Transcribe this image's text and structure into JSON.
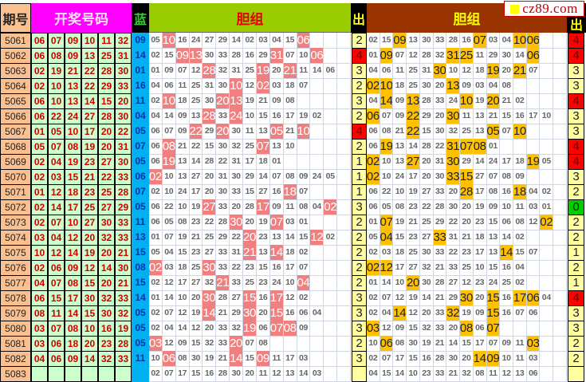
{
  "header": {
    "period": "期号",
    "draw": "开奖号码",
    "blue": "蓝",
    "group1": "胆组",
    "out1": "出",
    "group2": "胆组",
    "out2": "出"
  },
  "logo": {
    "text": "cz89.com"
  },
  "colors": {
    "period_bg": "#fac090",
    "draw_header_bg": "#ff00ff",
    "group1_header_bg": "#99cc00",
    "group2_header_bg": "#993300",
    "hit1": "#f08080",
    "hit2": "#ffc000",
    "blue_bg": "#00b0f0"
  },
  "rows": [
    {
      "period": "5061",
      "draw": [
        "06",
        "07",
        "09",
        "10",
        "11",
        "32"
      ],
      "blue": "09",
      "g1": [
        "05",
        "10",
        "16",
        "24",
        "27",
        "29",
        "14",
        "02",
        "03",
        "04",
        "15",
        "06"
      ],
      "c1": "2",
      "g2": [
        "02",
        "15",
        "09",
        "13",
        "30",
        "33",
        "28",
        "16",
        "07",
        "03",
        "04",
        "10",
        "06"
      ],
      "c2": "4"
    },
    {
      "period": "5062",
      "draw": [
        "06",
        "08",
        "09",
        "13",
        "25",
        "31"
      ],
      "blue": "14",
      "g1": [
        "02",
        "15",
        "09",
        "13",
        "30",
        "33",
        "28",
        "16",
        "29",
        "31",
        "07",
        "10",
        "06"
      ],
      "c1": "4",
      "g2": [
        "01",
        "09",
        "07",
        "12",
        "28",
        "32",
        "31",
        "25",
        "11",
        "29",
        "30",
        "14",
        "06"
      ],
      "c2": "4"
    },
    {
      "period": "5063",
      "draw": [
        "02",
        "19",
        "21",
        "22",
        "28",
        "30"
      ],
      "blue": "01",
      "g1": [
        "01",
        "09",
        "07",
        "12",
        "28",
        "32",
        "31",
        "25",
        "19",
        "20",
        "21",
        "11",
        "14",
        "06"
      ],
      "c1": "3",
      "g2": [
        "04",
        "06",
        "11",
        "25",
        "31",
        "30",
        "10",
        "12",
        "18",
        "19",
        "20",
        "21",
        "07"
      ],
      "c2": "3"
    },
    {
      "period": "5064",
      "draw": [
        "02",
        "10",
        "13",
        "22",
        "29",
        "33"
      ],
      "blue": "16",
      "g1": [
        "04",
        "06",
        "11",
        "25",
        "31",
        "30",
        "10",
        "12",
        "02",
        "03",
        "18",
        "07"
      ],
      "c1": "2",
      "g2": [
        "02",
        "10",
        "18",
        "25",
        "30",
        "20",
        "13",
        "09",
        "03",
        "04",
        "08"
      ],
      "c2": "3"
    },
    {
      "period": "5065",
      "draw": [
        "06",
        "10",
        "13",
        "14",
        "15",
        "20"
      ],
      "blue": "11",
      "g1": [
        "02",
        "10",
        "18",
        "25",
        "30",
        "20",
        "13",
        "19",
        "21",
        "09",
        "08"
      ],
      "c1": "3",
      "g2": [
        "04",
        "14",
        "09",
        "13",
        "28",
        "33",
        "24",
        "10",
        "19",
        "20",
        "21",
        "02"
      ],
      "c2": "4"
    },
    {
      "period": "5066",
      "draw": [
        "06",
        "22",
        "24",
        "27",
        "28",
        "30"
      ],
      "blue": "04",
      "g1": [
        "04",
        "14",
        "09",
        "13",
        "28",
        "33",
        "24",
        "10",
        "15",
        "16",
        "17",
        "19",
        "02"
      ],
      "c1": "2",
      "g2": [
        "06",
        "07",
        "09",
        "22",
        "29",
        "20",
        "30",
        "11",
        "13",
        "21",
        "15",
        "16",
        "17",
        "10"
      ],
      "c2": "3"
    },
    {
      "period": "5067",
      "draw": [
        "01",
        "05",
        "10",
        "17",
        "20",
        "22"
      ],
      "blue": "05",
      "g1": [
        "06",
        "07",
        "09",
        "22",
        "29",
        "20",
        "30",
        "11",
        "13",
        "05",
        "21",
        "10"
      ],
      "c1": "4",
      "g2": [
        "06",
        "08",
        "21",
        "22",
        "15",
        "30",
        "32",
        "25",
        "13",
        "05",
        "07",
        "10"
      ],
      "c2": "3"
    },
    {
      "period": "5068",
      "draw": [
        "05",
        "07",
        "08",
        "19",
        "20",
        "31"
      ],
      "blue": "07",
      "g1": [
        "06",
        "08",
        "21",
        "22",
        "15",
        "30",
        "32",
        "25",
        "07",
        "13",
        "10"
      ],
      "c1": "2",
      "g2": [
        "06",
        "19",
        "13",
        "14",
        "28",
        "22",
        "31",
        "07",
        "08",
        "01"
      ],
      "c2": "4"
    },
    {
      "period": "5069",
      "draw": [
        "02",
        "04",
        "19",
        "23",
        "27",
        "30"
      ],
      "blue": "05",
      "g1": [
        "06",
        "19",
        "13",
        "14",
        "28",
        "22",
        "31",
        "17",
        "18",
        "01"
      ],
      "c1": "1",
      "g2": [
        "02",
        "10",
        "13",
        "27",
        "20",
        "31",
        "30",
        "29",
        "14",
        "24",
        "17",
        "18",
        "19",
        "05"
      ],
      "c2": "4"
    },
    {
      "period": "5070",
      "draw": [
        "02",
        "03",
        "15",
        "21",
        "22",
        "33"
      ],
      "blue": "06",
      "g1": [
        "02",
        "10",
        "13",
        "27",
        "20",
        "31",
        "30",
        "29",
        "14",
        "07",
        "08",
        "09",
        "24",
        "05"
      ],
      "c1": "1",
      "g2": [
        "02",
        "10",
        "24",
        "17",
        "20",
        "30",
        "33",
        "15",
        "27",
        "07",
        "08",
        "09"
      ],
      "c2": "3"
    },
    {
      "period": "5071",
      "draw": [
        "01",
        "12",
        "18",
        "23",
        "25",
        "28"
      ],
      "blue": "07",
      "g1": [
        "02",
        "10",
        "24",
        "17",
        "20",
        "30",
        "33",
        "15",
        "27",
        "16",
        "18",
        "07"
      ],
      "c1": "1",
      "g2": [
        "06",
        "22",
        "10",
        "19",
        "27",
        "33",
        "20",
        "28",
        "17",
        "08",
        "16",
        "18",
        "04",
        "02"
      ],
      "c2": "2"
    },
    {
      "period": "5072",
      "draw": [
        "02",
        "14",
        "17",
        "25",
        "27",
        "29"
      ],
      "blue": "05",
      "g1": [
        "06",
        "22",
        "10",
        "19",
        "27",
        "33",
        "20",
        "28",
        "17",
        "09",
        "11",
        "08",
        "04",
        "02"
      ],
      "c1": "3",
      "g2": [
        "06",
        "05",
        "08",
        "23",
        "22",
        "28",
        "30",
        "20",
        "19",
        "09",
        "10",
        "11",
        "03",
        "01"
      ],
      "c2": "0"
    },
    {
      "period": "5073",
      "draw": [
        "02",
        "07",
        "10",
        "27",
        "30",
        "33"
      ],
      "blue": "11",
      "g1": [
        "06",
        "05",
        "08",
        "23",
        "22",
        "28",
        "30",
        "20",
        "19",
        "07",
        "03",
        "01"
      ],
      "c1": "2",
      "g2": [
        "01",
        "07",
        "19",
        "21",
        "25",
        "29",
        "22",
        "20",
        "23",
        "15",
        "06",
        "08",
        "12",
        "02"
      ],
      "c2": "2"
    },
    {
      "period": "5074",
      "draw": [
        "03",
        "04",
        "12",
        "20",
        "32",
        "33"
      ],
      "blue": "13",
      "g1": [
        "01",
        "07",
        "19",
        "21",
        "25",
        "29",
        "22",
        "20",
        "23",
        "13",
        "14",
        "15",
        "12",
        "02"
      ],
      "c1": "2",
      "g2": [
        "05",
        "04",
        "15",
        "23",
        "27",
        "33",
        "31",
        "21",
        "18",
        "13",
        "14",
        "02"
      ],
      "c2": "2"
    },
    {
      "period": "5075",
      "draw": [
        "10",
        "12",
        "14",
        "19",
        "20",
        "21"
      ],
      "blue": "15",
      "g1": [
        "05",
        "04",
        "15",
        "23",
        "27",
        "33",
        "31",
        "21",
        "13",
        "14",
        "18",
        "02"
      ],
      "c1": "2",
      "g2": [
        "02",
        "03",
        "18",
        "25",
        "30",
        "33",
        "22",
        "23",
        "17",
        "13",
        "14",
        "15",
        "07"
      ],
      "c2": "1"
    },
    {
      "period": "5076",
      "draw": [
        "02",
        "06",
        "09",
        "12",
        "14",
        "30"
      ],
      "blue": "08",
      "g1": [
        "02",
        "03",
        "18",
        "25",
        "30",
        "33",
        "22",
        "23",
        "15",
        "16",
        "17",
        "07"
      ],
      "c1": "2",
      "g2": [
        "02",
        "12",
        "17",
        "27",
        "32",
        "21",
        "33",
        "25",
        "10",
        "15",
        "16",
        "04"
      ],
      "c2": "2"
    },
    {
      "period": "5077",
      "draw": [
        "04",
        "07",
        "08",
        "15",
        "20",
        "21"
      ],
      "blue": "15",
      "g1": [
        "02",
        "12",
        "17",
        "27",
        "32",
        "21",
        "33",
        "25",
        "23",
        "24",
        "10",
        "04"
      ],
      "c1": "2",
      "g2": [
        "01",
        "14",
        "10",
        "20",
        "30",
        "28",
        "27",
        "12",
        "23",
        "24",
        "25",
        "02"
      ],
      "c2": "1"
    },
    {
      "period": "5078",
      "draw": [
        "06",
        "15",
        "17",
        "30",
        "32",
        "33"
      ],
      "blue": "14",
      "g1": [
        "01",
        "14",
        "10",
        "20",
        "30",
        "28",
        "27",
        "15",
        "16",
        "17",
        "12",
        "02"
      ],
      "c1": "3",
      "g2": [
        "02",
        "07",
        "12",
        "19",
        "14",
        "21",
        "29",
        "30",
        "20",
        "15",
        "16",
        "17",
        "06",
        "04"
      ],
      "c2": "4"
    },
    {
      "period": "5079",
      "draw": [
        "08",
        "11",
        "14",
        "15",
        "30",
        "32"
      ],
      "blue": "05",
      "g1": [
        "02",
        "07",
        "12",
        "19",
        "14",
        "21",
        "29",
        "30",
        "20",
        "15",
        "16",
        "06",
        "04"
      ],
      "c1": "3",
      "g2": [
        "02",
        "04",
        "14",
        "12",
        "20",
        "33",
        "32",
        "19",
        "09",
        "15",
        "16",
        "07",
        "06"
      ],
      "c2": "3"
    },
    {
      "period": "5080",
      "draw": [
        "03",
        "07",
        "08",
        "10",
        "16",
        "19"
      ],
      "blue": "05",
      "g1": [
        "02",
        "04",
        "14",
        "12",
        "20",
        "33",
        "32",
        "19",
        "06",
        "07",
        "08",
        "09"
      ],
      "c1": "3",
      "g2": [
        "03",
        "12",
        "09",
        "15",
        "32",
        "33",
        "20",
        "08",
        "06",
        "07"
      ],
      "c2": "3"
    },
    {
      "period": "5081",
      "draw": [
        "03",
        "06",
        "18",
        "20",
        "23",
        "28"
      ],
      "blue": "05",
      "g1": [
        "03",
        "12",
        "09",
        "15",
        "32",
        "33",
        "20",
        "07",
        "08"
      ],
      "c1": "2",
      "g2": [
        "10",
        "06",
        "08",
        "30",
        "19",
        "21",
        "14",
        "15",
        "17",
        "07",
        "09",
        "11",
        "03"
      ],
      "c2": "2"
    },
    {
      "period": "5082",
      "draw": [
        "04",
        "06",
        "09",
        "14",
        "32",
        "33"
      ],
      "blue": "11",
      "g1": [
        "10",
        "06",
        "08",
        "30",
        "19",
        "21",
        "14",
        "15",
        "09",
        "11",
        "17",
        "03"
      ],
      "c1": "3",
      "g2": [
        "02",
        "07",
        "17",
        "15",
        "16",
        "28",
        "30",
        "20",
        "14",
        "09",
        "10",
        "11",
        "03"
      ],
      "c2": "2"
    },
    {
      "period": "5083",
      "draw": [
        "",
        "",
        "",
        "",
        "",
        ""
      ],
      "blue": "",
      "g1": [
        "02",
        "07",
        "17",
        "15",
        "16",
        "28",
        "30",
        "20",
        "11",
        "12",
        "13",
        "14",
        "03"
      ],
      "c1": "",
      "g2": [
        "04",
        "15",
        "14",
        "10",
        "23",
        "33",
        "21",
        "32",
        "08",
        "11",
        "12",
        "13",
        "06"
      ],
      "c2": ""
    }
  ]
}
